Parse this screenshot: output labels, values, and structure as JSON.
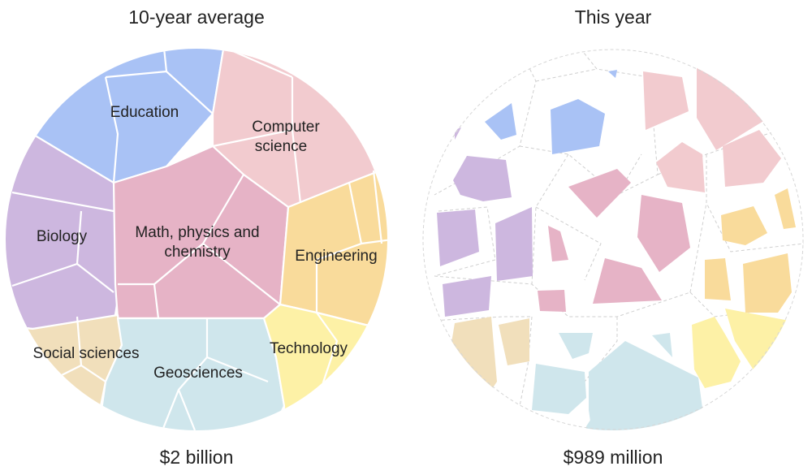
{
  "chart_data": {
    "type": "voronoi-treemap",
    "charts": [
      {
        "title": "10-year average",
        "total": "$2 billion",
        "categories": [
          {
            "name": "Education",
            "label": [
              "Education"
            ],
            "color": "#a9c2f5"
          },
          {
            "name": "Computer science",
            "label": [
              "Computer",
              "science"
            ],
            "color": "#f2cbcf"
          },
          {
            "name": "Biology",
            "label": [
              "Biology"
            ],
            "color": "#cdb7df"
          },
          {
            "name": "Math, physics and chemistry",
            "label": [
              "Math, physics and",
              "chemistry"
            ],
            "color": "#e6b3c6"
          },
          {
            "name": "Engineering",
            "label": [
              "Engineering"
            ],
            "color": "#f9db9b"
          },
          {
            "name": "Social sciences",
            "label": [
              "Social sciences"
            ],
            "color": "#f1dfbb"
          },
          {
            "name": "Geosciences",
            "label": [
              "Geosciences"
            ],
            "color": "#cfe6ec"
          },
          {
            "name": "Technology",
            "label": [
              "Technology"
            ],
            "color": "#fdf1a6"
          }
        ]
      },
      {
        "title": "This year",
        "total": "$989 million"
      }
    ]
  }
}
